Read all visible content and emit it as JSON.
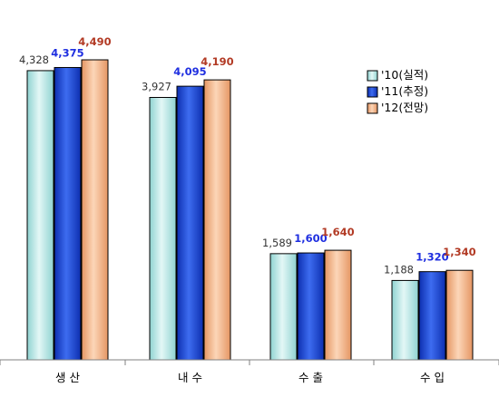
{
  "chart_data": {
    "type": "bar",
    "title": "",
    "xlabel": "",
    "ylabel": "",
    "categories": [
      "생 산",
      "내 수",
      "수 출",
      "수 입"
    ],
    "series": [
      {
        "name": "'10(실적)",
        "values": [
          4328,
          3927,
          1589,
          1188
        ],
        "labels": [
          "4,328",
          "3,927",
          "1,589",
          "1,188"
        ],
        "color": "#b2e6e4",
        "label_color": "#333333"
      },
      {
        "name": "'11(추정)",
        "values": [
          4375,
          4095,
          1600,
          1320
        ],
        "labels": [
          "4,375",
          "4,095",
          "1,600",
          "1,320"
        ],
        "color": "#1f4fd6",
        "label_color": "#1f2fe0"
      },
      {
        "name": "'12(전망)",
        "values": [
          4490,
          4190,
          1640,
          1340
        ],
        "labels": [
          "4,490",
          "4,190",
          "1,640",
          "1,340"
        ],
        "color": "#f2b48a",
        "label_color": "#b23a24"
      }
    ],
    "ylim": [
      0,
      4800
    ],
    "grid": false,
    "legend_position": "right"
  }
}
